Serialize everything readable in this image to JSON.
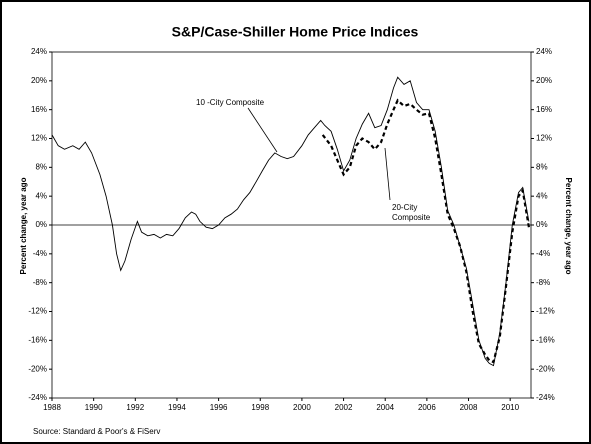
{
  "chart_data": {
    "type": "line",
    "title": "S&P/Case-Shiller Home Price Indices",
    "ylabel": "Percent change, year ago",
    "y2label": "Percent change, year ago",
    "source": "Source: Standard & Poor's & FiServ",
    "xlim": [
      1988,
      2011
    ],
    "xticks": [
      1988,
      1990,
      1992,
      1994,
      1996,
      1998,
      2000,
      2002,
      2004,
      2006,
      2008,
      2010
    ],
    "ylim": [
      -24,
      24
    ],
    "yticks": [
      {
        "value": 24,
        "label": "24%"
      },
      {
        "value": 20,
        "label": "20%"
      },
      {
        "value": 16,
        "label": "16%"
      },
      {
        "value": 12,
        "label": "12%"
      },
      {
        "value": 8,
        "label": "8%"
      },
      {
        "value": 4,
        "label": "4%"
      },
      {
        "value": 0,
        "label": "0%"
      },
      {
        "value": -4,
        "label": "-4%"
      },
      {
        "value": -8,
        "label": "-8%"
      },
      {
        "value": -12,
        "label": "-12%"
      },
      {
        "value": -16,
        "label": "-16%"
      },
      {
        "value": -20,
        "label": "-20%"
      },
      {
        "value": -24,
        "label": "-24%"
      }
    ],
    "y2lim": [
      -24,
      24
    ],
    "y2ticks": [
      {
        "value": 24,
        "label": "24%"
      },
      {
        "value": 20,
        "label": "20%"
      },
      {
        "value": 16,
        "label": "16%"
      },
      {
        "value": 12,
        "label": "12%"
      },
      {
        "value": 8,
        "label": "8%"
      },
      {
        "value": 4,
        "label": "4%"
      },
      {
        "value": 0,
        "label": "0%"
      },
      {
        "value": -4,
        "label": "-4%"
      },
      {
        "value": -8,
        "label": "-8%"
      },
      {
        "value": -12,
        "label": "-12%"
      },
      {
        "value": -16,
        "label": "-16%"
      },
      {
        "value": -20,
        "label": "-20%"
      },
      {
        "value": -24,
        "label": "-24%"
      }
    ],
    "hline": 0,
    "annotations": [
      {
        "text": [
          "10 -City Composite"
        ]
      },
      {
        "text": [
          "20-City",
          "Composite"
        ]
      }
    ],
    "series": [
      {
        "name": "10-City Composite",
        "color": "#000000",
        "dash": false,
        "x": [
          1988.0,
          1988.3,
          1988.6,
          1989.0,
          1989.3,
          1989.6,
          1989.9,
          1990.3,
          1990.6,
          1990.9,
          1991.1,
          1991.3,
          1991.5,
          1991.8,
          1992.1,
          1992.3,
          1992.6,
          1992.9,
          1993.2,
          1993.5,
          1993.8,
          1994.1,
          1994.4,
          1994.7,
          1994.9,
          1995.1,
          1995.4,
          1995.7,
          1996.0,
          1996.3,
          1996.6,
          1996.9,
          1997.2,
          1997.5,
          1997.8,
          1998.1,
          1998.4,
          1998.7,
          1999.0,
          1999.3,
          1999.6,
          2000.0,
          2000.3,
          2000.6,
          2000.9,
          2001.1,
          2001.4,
          2001.7,
          2002.0,
          2002.3,
          2002.6,
          2002.9,
          2003.2,
          2003.5,
          2003.8,
          2004.1,
          2004.4,
          2004.6,
          2004.9,
          2005.2,
          2005.5,
          2005.8,
          2006.1,
          2006.4,
          2006.7,
          2007.0,
          2007.3,
          2007.6,
          2007.9,
          2008.2,
          2008.5,
          2008.8,
          2009.0,
          2009.2,
          2009.5,
          2009.8,
          2010.1,
          2010.4,
          2010.6,
          2010.9
        ],
        "values": [
          12.5,
          11,
          10.5,
          11,
          10.5,
          11.5,
          10,
          7,
          4,
          0,
          -4,
          -6.3,
          -5,
          -2,
          0.5,
          -1,
          -1.5,
          -1.3,
          -1.8,
          -1.3,
          -1.5,
          -0.5,
          1,
          1.8,
          1.5,
          0.5,
          -0.3,
          -0.5,
          0,
          1,
          1.5,
          2.2,
          3.5,
          4.5,
          6,
          7.5,
          9,
          10,
          9.5,
          9.2,
          9.5,
          11,
          12.5,
          13.5,
          14.5,
          13.8,
          13,
          10.5,
          7.5,
          9,
          12,
          14,
          15.5,
          13.5,
          13.8,
          16,
          19,
          20.5,
          19.5,
          20,
          17,
          16,
          16,
          13,
          8,
          2,
          0,
          -3,
          -6,
          -11,
          -16,
          -18.5,
          -19.2,
          -19.5,
          -15,
          -8,
          0,
          4.5,
          5.2,
          0.5
        ]
      },
      {
        "name": "20-City Composite",
        "color": "#000000",
        "dash": true,
        "axis": "y2",
        "x": [
          2001.0,
          2001.4,
          2001.7,
          2002.0,
          2002.3,
          2002.6,
          2002.9,
          2003.2,
          2003.5,
          2003.8,
          2004.1,
          2004.4,
          2004.6,
          2004.9,
          2005.2,
          2005.5,
          2005.8,
          2006.1,
          2006.4,
          2006.7,
          2007.0,
          2007.3,
          2007.6,
          2007.9,
          2008.2,
          2008.5,
          2008.8,
          2009.0,
          2009.2,
          2009.5,
          2009.8,
          2010.1,
          2010.4,
          2010.6,
          2010.9
        ],
        "values": [
          12.5,
          11,
          9,
          7,
          8,
          11,
          12,
          11.5,
          10.5,
          11.5,
          14,
          16,
          17.3,
          16.5,
          16.8,
          16,
          15.3,
          15.5,
          12,
          7,
          1.5,
          -0.5,
          -3,
          -6.5,
          -12,
          -16.5,
          -18,
          -18.8,
          -19,
          -15.5,
          -8.5,
          -1,
          4,
          4.8,
          -0.3
        ]
      }
    ]
  }
}
